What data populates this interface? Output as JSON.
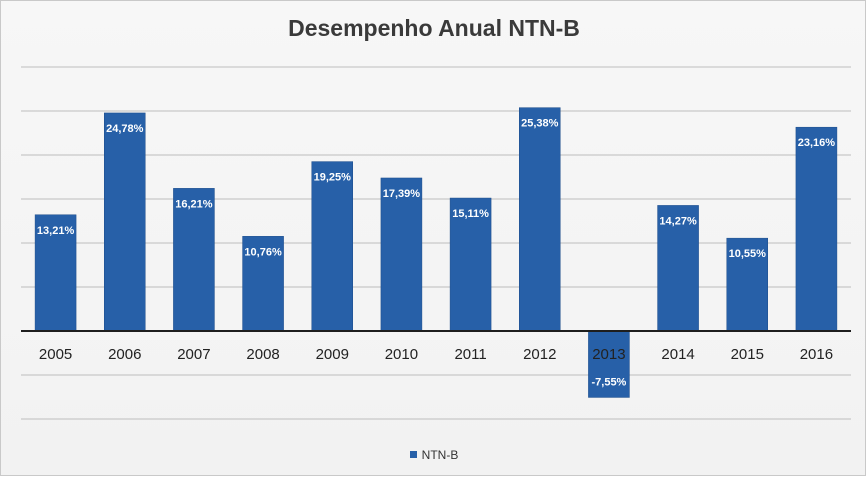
{
  "chart_data": {
    "type": "bar",
    "title": "Desempenho Anual NTN-B",
    "xlabel": "",
    "ylabel": "",
    "categories": [
      "2005",
      "2006",
      "2007",
      "2008",
      "2009",
      "2010",
      "2011",
      "2012",
      "2013",
      "2014",
      "2015",
      "2016"
    ],
    "series": [
      {
        "name": "NTN-B",
        "values": [
          13.21,
          24.78,
          16.21,
          10.76,
          19.25,
          17.39,
          15.11,
          25.38,
          -7.55,
          14.27,
          10.55,
          23.16
        ],
        "labels": [
          "13,21%",
          "24,78%",
          "16,21%",
          "10,76%",
          "19,25%",
          "17,39%",
          "15,11%",
          "25,38%",
          "-7,55%",
          "14,27%",
          "10,55%",
          "23,16%"
        ],
        "color": "#2760a8"
      }
    ],
    "ylim": [
      -10,
      30
    ],
    "grid": true,
    "legend_position": "bottom"
  }
}
